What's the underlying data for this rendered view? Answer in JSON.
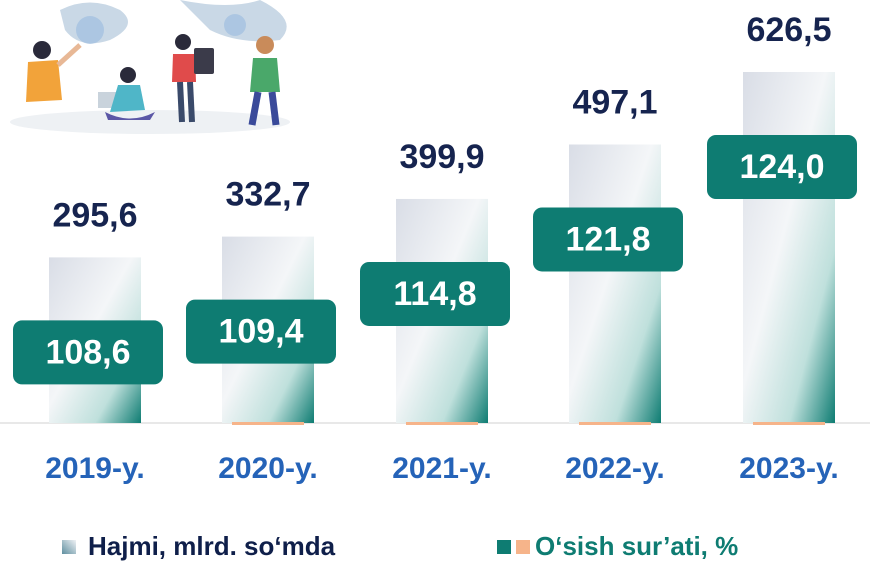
{
  "chart_data": {
    "type": "bar",
    "categories": [
      "2019-y.",
      "2020-y.",
      "2021-y.",
      "2022-y.",
      "2023-y."
    ],
    "series": [
      {
        "name": "Hajmi, mlrd. so‘mda",
        "color": "#0e7c72",
        "values": [
          295.6,
          332.7,
          399.9,
          497.1,
          626.5
        ],
        "value_labels": [
          "295,6",
          "332,7",
          "399,9",
          "497,1",
          "626,5"
        ]
      },
      {
        "name": "O‘sish sur’ati, %",
        "color": "#0e7c72",
        "values": [
          108.6,
          109.4,
          114.8,
          121.8,
          124.0
        ],
        "value_labels": [
          "108,6",
          "109,4",
          "114,8",
          "121,8",
          "124,0"
        ]
      }
    ]
  }
}
